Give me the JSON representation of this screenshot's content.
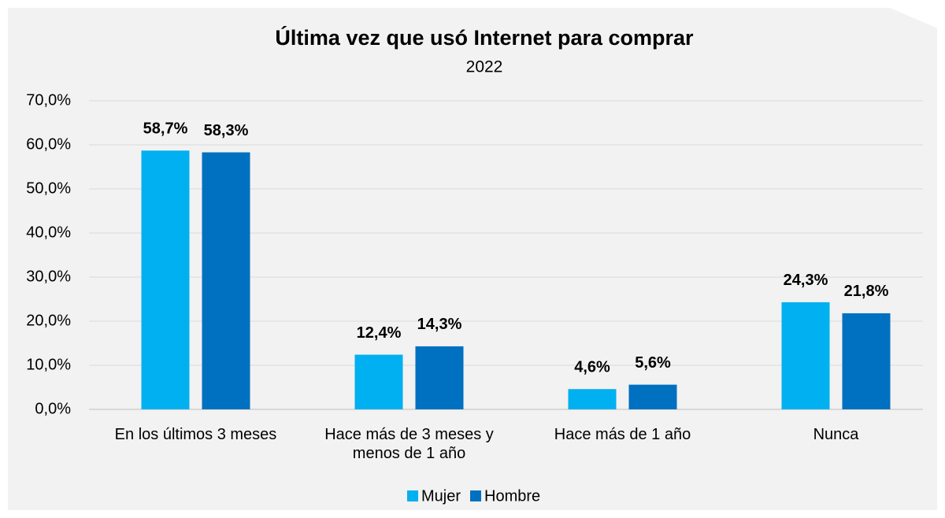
{
  "chart_data": {
    "type": "bar",
    "title": "Última vez que usó Internet para comprar",
    "subtitle": "2022",
    "categories": [
      "En los últimos 3 meses",
      "Hace más de 3 meses y menos de 1 año",
      "Hace más de 1 año",
      "Nunca"
    ],
    "series": [
      {
        "name": "Mujer",
        "color": "#00b0f0",
        "values": [
          58.7,
          12.4,
          4.6,
          24.3
        ],
        "value_labels": [
          "58,7%",
          "12,4%",
          "4,6%",
          "24,3%"
        ]
      },
      {
        "name": "Hombre",
        "color": "#0070c0",
        "values": [
          58.3,
          14.3,
          5.6,
          21.8
        ],
        "value_labels": [
          "58,3%",
          "14,3%",
          "5,6%",
          "21,8%"
        ]
      }
    ],
    "ylim": [
      0,
      70
    ],
    "yticks": [
      {
        "value": 0,
        "label": "0,0%"
      },
      {
        "value": 10,
        "label": "10,0%"
      },
      {
        "value": 20,
        "label": "20,0%"
      },
      {
        "value": 30,
        "label": "30,0%"
      },
      {
        "value": 40,
        "label": "40,0%"
      },
      {
        "value": 50,
        "label": "50,0%"
      },
      {
        "value": 60,
        "label": "60,0%"
      },
      {
        "value": 70,
        "label": "70,0%"
      }
    ],
    "grid": true,
    "legend": "bottom"
  }
}
